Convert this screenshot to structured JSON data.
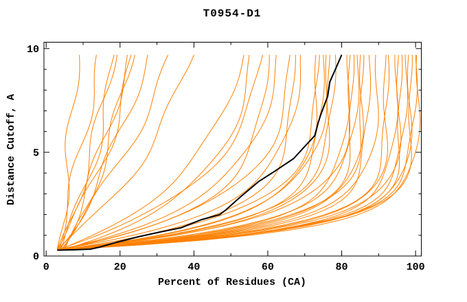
{
  "chart_data": {
    "type": "line",
    "title": "T0954-D1",
    "xlabel": "Percent of Residues (CA)",
    "ylabel": "Distance Cutoff, A",
    "legend": false,
    "grid": false,
    "x_axis": {
      "range": [
        -0.6,
        102.3
      ],
      "ticks_major": [
        0,
        20,
        40,
        60,
        80,
        100
      ],
      "ticks_minor": [
        10,
        30,
        50,
        70,
        90
      ],
      "tick_labels": [
        "0",
        "20",
        "40",
        "60",
        "80",
        "100"
      ]
    },
    "y_axis": {
      "range": [
        0,
        10.3
      ],
      "ticks_major": [
        0,
        5,
        10
      ],
      "ticks_minor": [
        1,
        2,
        3,
        4,
        6,
        7,
        8,
        9
      ],
      "tick_labels": [
        "0",
        "5",
        "10"
      ]
    },
    "style": {
      "model_color": "#ff8100",
      "highlight_color": "#000000",
      "axis_color": "#000000",
      "background": "#ffffff",
      "model_line_width": 1,
      "highlight_line_width": 2
    },
    "highlight_curve": {
      "name": "black-highlighted-model",
      "points": [
        [
          3,
          0.28
        ],
        [
          8,
          0.3
        ],
        [
          12,
          0.33
        ],
        [
          14.5,
          0.43
        ],
        [
          19,
          0.66
        ],
        [
          25,
          0.93
        ],
        [
          31,
          1.16
        ],
        [
          36.5,
          1.36
        ],
        [
          42,
          1.75
        ],
        [
          47,
          2.0
        ],
        [
          48.5,
          2.2
        ],
        [
          52.6,
          2.85
        ],
        [
          57.6,
          3.6
        ],
        [
          62,
          4.1
        ],
        [
          67,
          4.7
        ],
        [
          70.6,
          5.4
        ],
        [
          72.7,
          5.8
        ],
        [
          73.6,
          6.4
        ],
        [
          74.3,
          6.8
        ],
        [
          76.2,
          7.7
        ],
        [
          76.8,
          8.4
        ],
        [
          78.3,
          9.0
        ],
        [
          80,
          9.7
        ]
      ]
    },
    "model_curves": {
      "name": "model-pool-curves",
      "description": "Orange cumulative GDT-style curves; each reaches top at y=9.7. Format per curve: [x_at_top_percent, curvature_k, x_start_percent, wobble_phase, wobble_amp]. Shape: x(y)=x0+(xtop-x0)*(exp(-k*y0)-exp(-k*y))/(exp(-k*y0)-exp(-k*ytop)), y0=0.3, ytop=9.7.",
      "y_start": 0.3,
      "y_top": 9.7,
      "curves": [
        [
          9,
          0.08,
          3.0,
          0.0,
          1.8
        ],
        [
          13.6,
          0.07,
          3.5,
          1.9,
          1.8
        ],
        [
          18.4,
          0.1,
          4.0,
          3.8,
          1.8
        ],
        [
          19.2,
          0.06,
          3.0,
          5.7,
          1.8
        ],
        [
          22,
          0.09,
          4.5,
          7.6,
          1.8
        ],
        [
          23,
          0.12,
          3.0,
          9.5,
          1.8
        ],
        [
          24,
          0.07,
          5.0,
          11.4,
          1.8
        ],
        [
          27.5,
          0.1,
          3.5,
          13.3,
          1.8
        ],
        [
          33,
          0.08,
          4.0,
          15.2,
          1.8
        ],
        [
          40,
          0.12,
          3.0,
          17.1,
          1.8
        ],
        [
          53.5,
          0.25,
          3.5,
          19.0,
          1.2
        ],
        [
          55,
          0.36,
          4.5,
          20.9,
          1.2
        ],
        [
          58.6,
          0.3,
          3.0,
          22.8,
          1.2
        ],
        [
          60.4,
          0.48,
          4.0,
          24.7,
          1.2
        ],
        [
          62.3,
          0.4,
          3.5,
          26.6,
          1.2
        ],
        [
          66,
          0.45,
          3.0,
          28.5,
          1.2
        ],
        [
          67.5,
          0.62,
          4.5,
          30.4,
          1.2
        ],
        [
          68.8,
          0.52,
          3.0,
          32.3,
          1.2
        ],
        [
          73,
          0.72,
          3.5,
          34.2,
          1.2
        ],
        [
          74,
          0.58,
          4.0,
          36.1,
          1.2
        ],
        [
          75,
          0.78,
          3.0,
          38.0,
          1.2
        ],
        [
          75.8,
          0.64,
          4.5,
          39.9,
          1.2
        ],
        [
          76.8,
          0.82,
          3.0,
          41.8,
          1.2
        ],
        [
          78.3,
          0.7,
          3.5,
          43.7,
          1.2
        ],
        [
          81.4,
          0.88,
          4.0,
          45.6,
          1.2
        ],
        [
          82.3,
          0.74,
          3.0,
          47.5,
          1.2
        ],
        [
          83.3,
          0.92,
          4.5,
          49.4,
          1.2
        ],
        [
          84.2,
          0.8,
          3.0,
          51.3,
          1.2
        ],
        [
          85.1,
          0.95,
          3.5,
          53.2,
          1.2
        ],
        [
          86,
          0.84,
          4.0,
          55.1,
          1.2
        ],
        [
          87.4,
          0.99,
          3.0,
          57.0,
          1.2
        ],
        [
          89.2,
          0.9,
          4.5,
          58.9,
          1.2
        ],
        [
          92,
          1.03,
          3.0,
          60.8,
          1.2
        ],
        [
          92.6,
          0.95,
          3.5,
          62.7,
          1.2
        ],
        [
          94.4,
          1.06,
          4.0,
          64.6,
          1.2
        ],
        [
          95.4,
          1.0,
          3.0,
          66.5,
          1.2
        ],
        [
          96.3,
          1.08,
          4.5,
          68.4,
          1.2
        ],
        [
          97.2,
          1.02,
          3.0,
          70.3,
          1.2
        ],
        [
          98.1,
          1.08,
          3.5,
          72.2,
          1.2
        ],
        [
          99.1,
          1.04,
          4.0,
          74.1,
          1.2
        ],
        [
          100,
          0.98,
          3.0,
          76.0,
          1.2
        ],
        [
          100.3,
          1.08,
          4.5,
          77.9,
          1.2
        ]
      ]
    }
  }
}
